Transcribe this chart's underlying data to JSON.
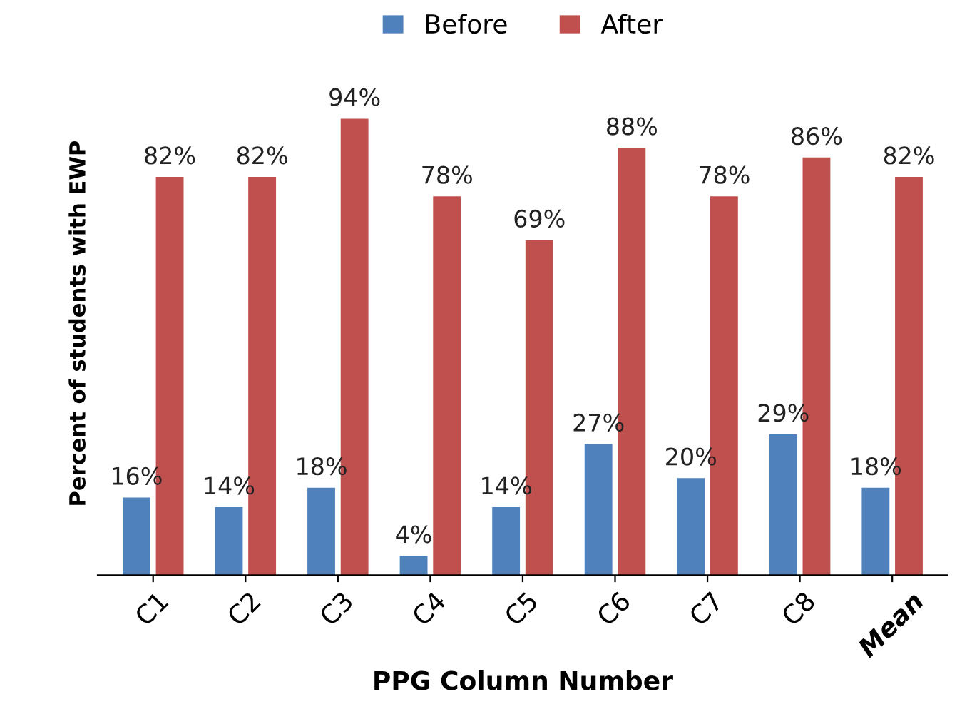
{
  "chart_data": {
    "type": "bar",
    "xlabel": "PPG Column Number",
    "ylabel": "Percent of students with EWP",
    "categories": [
      "C1",
      "C2",
      "C3",
      "C4",
      "C5",
      "C6",
      "C7",
      "C8",
      "Mean"
    ],
    "series": [
      {
        "name": "Before",
        "color": "#4f81bd",
        "values": [
          16,
          14,
          18,
          4,
          14,
          27,
          20,
          29,
          18
        ],
        "value_labels": [
          "16%",
          "14%",
          "18%",
          "4%",
          "14%",
          "27%",
          "20%",
          "29%",
          "18%"
        ]
      },
      {
        "name": "After",
        "color": "#c0504d",
        "values": [
          82,
          82,
          94,
          78,
          69,
          88,
          78,
          86,
          82
        ],
        "value_labels": [
          "82%",
          "82%",
          "94%",
          "78%",
          "69%",
          "88%",
          "78%",
          "86%",
          "82%"
        ]
      }
    ],
    "legend": "top",
    "grid": false,
    "tick_labels": "x"
  }
}
